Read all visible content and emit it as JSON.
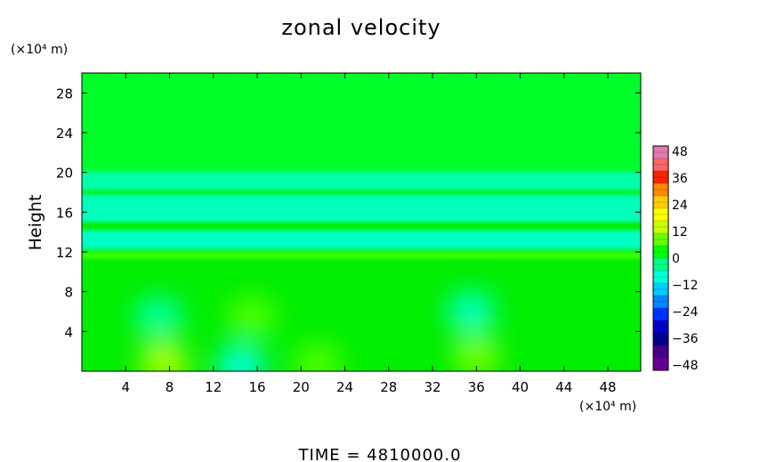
{
  "chart_data": {
    "type": "heatmap",
    "title": "zonal velocity",
    "ylabel": "Height",
    "xlabel": "",
    "x_unit": "(×10⁴ m)",
    "y_unit": "(×10⁴ m)",
    "x_ticks": [
      4,
      8,
      12,
      16,
      20,
      24,
      28,
      32,
      36,
      40,
      44,
      48
    ],
    "y_ticks": [
      4,
      8,
      12,
      16,
      20,
      24,
      28
    ],
    "xlim": [
      0,
      51
    ],
    "ylim": [
      0,
      30
    ],
    "colorbar": {
      "ticks": [
        48,
        36,
        24,
        12,
        0,
        -12,
        -24,
        -36,
        -48
      ],
      "range": [
        -48,
        48
      ],
      "colors": [
        "#e07ab0",
        "#ff6666",
        "#ff2200",
        "#ff8800",
        "#ffcc00",
        "#ffff00",
        "#ccff00",
        "#66ff00",
        "#00ff00",
        "#00ff88",
        "#00ffdd",
        "#00ccff",
        "#0088ff",
        "#0033ff",
        "#0000cc",
        "#000088",
        "#440088",
        "#660099"
      ]
    },
    "features": [
      {
        "kind": "band",
        "y_from": 20,
        "y_to": 30,
        "value": 1
      },
      {
        "kind": "band",
        "y_from": 18.2,
        "y_to": 20,
        "value": -5
      },
      {
        "kind": "band",
        "y_from": 15,
        "y_to": 17.8,
        "value": -6
      },
      {
        "kind": "band",
        "y_from": 12.3,
        "y_to": 14.2,
        "value": -7
      },
      {
        "kind": "band",
        "y_from": 11.3,
        "y_to": 12,
        "value": 6
      },
      {
        "kind": "blob",
        "x": 7,
        "y": 5.5,
        "value": -4
      },
      {
        "kind": "blob",
        "x": 15.5,
        "y": 5.5,
        "value": 7
      },
      {
        "kind": "blob",
        "x": 35.5,
        "y": 6,
        "value": -6
      },
      {
        "kind": "blob",
        "x": 7.5,
        "y": 0.8,
        "value": 12
      },
      {
        "kind": "blob",
        "x": 14.5,
        "y": 0.5,
        "value": -8
      },
      {
        "kind": "blob",
        "x": 21.5,
        "y": 0.8,
        "value": 7
      },
      {
        "kind": "blob",
        "x": 36,
        "y": 1.5,
        "value": 9
      }
    ]
  },
  "footer": {
    "time_text": "TIME = 4810000.0"
  }
}
